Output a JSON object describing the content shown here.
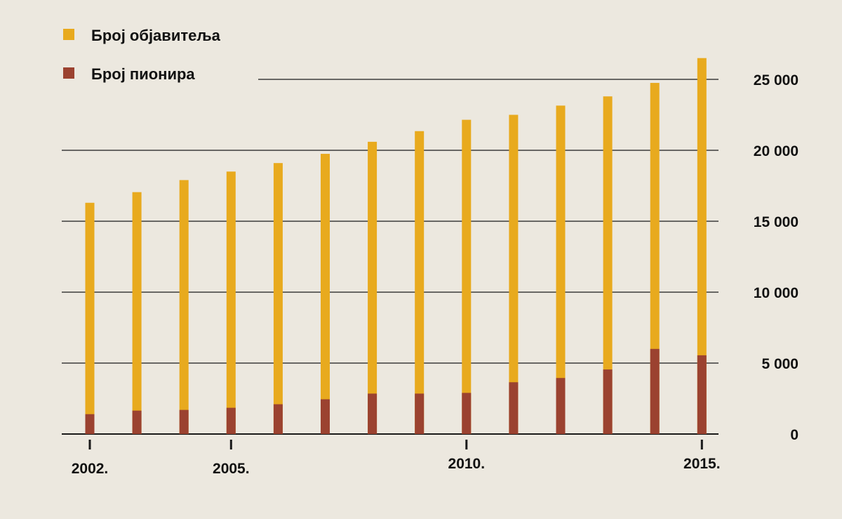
{
  "colors": {
    "background": "#ece8df",
    "publishers": "#e8aa1e",
    "pioneers": "#9b4230",
    "axis": "#1a1a1a"
  },
  "legend": {
    "publishers_label": "Број објавитеља",
    "pioneers_label": "Број пионира"
  },
  "chart_data": {
    "type": "bar",
    "categories": [
      "2002",
      "2003",
      "2004",
      "2005",
      "2006",
      "2007",
      "2008",
      "2009",
      "2010",
      "2011",
      "2012",
      "2013",
      "2014",
      "2015"
    ],
    "series": [
      {
        "name": "Број објавитеља",
        "values": [
          16300,
          17050,
          17900,
          18500,
          19100,
          19750,
          20600,
          21350,
          22150,
          22500,
          23150,
          23800,
          24750,
          26500
        ]
      },
      {
        "name": "Број пионира",
        "values": [
          1400,
          1650,
          1700,
          1850,
          2100,
          2450,
          2850,
          2850,
          2900,
          3650,
          3950,
          4550,
          6000,
          5550
        ]
      }
    ],
    "stacking": "overlay",
    "ylim": [
      0,
      27000
    ],
    "yticks": [
      0,
      5000,
      10000,
      15000,
      20000,
      25000
    ],
    "ytick_labels": [
      "0",
      "5 000",
      "10 000",
      "15 000",
      "20 000",
      "25 000"
    ],
    "xticks_labeled": [
      "2002.",
      "2005.",
      "2010.",
      "2015."
    ],
    "y_axis_side": "right",
    "grid": "horizontal",
    "legend_position": "top-left"
  }
}
